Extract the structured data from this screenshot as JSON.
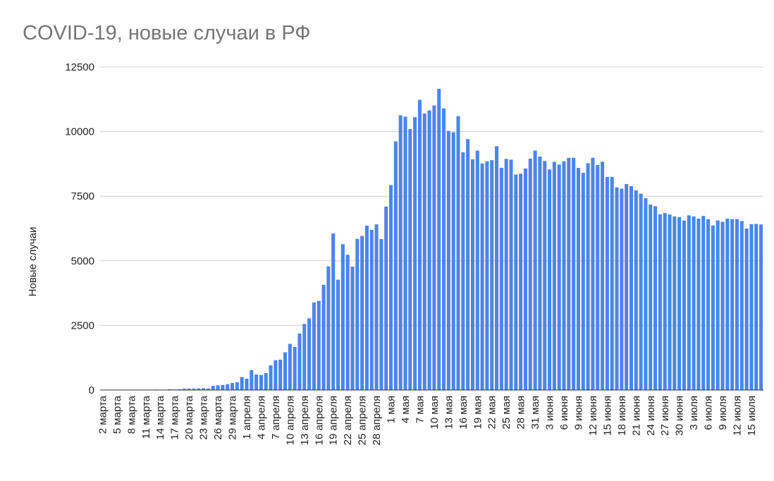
{
  "chart_data": {
    "type": "bar",
    "title": "COVID-19, новые случаи в РФ",
    "y_label": "Новые случаи",
    "color": "#4a86e8",
    "grid": true,
    "ylim": [
      0,
      12500
    ],
    "yticks": [
      0,
      2500,
      5000,
      7500,
      10000,
      12500
    ],
    "categories": [
      "2 марта",
      null,
      null,
      "5 марта",
      null,
      null,
      "8 марта",
      null,
      null,
      "11 марта",
      null,
      null,
      "14 марта",
      null,
      null,
      "17 марта",
      null,
      null,
      "20 марта",
      null,
      null,
      "23 марта",
      null,
      null,
      "26 марта",
      null,
      null,
      "29 марта",
      null,
      null,
      "1 апреля",
      null,
      null,
      "4 апреля",
      null,
      null,
      "7 апреля",
      null,
      null,
      "10 апреля",
      null,
      null,
      "13 апреля",
      null,
      null,
      "16 апреля",
      null,
      null,
      "19 апреля",
      null,
      null,
      "22 апреля",
      null,
      null,
      "25 апреля",
      null,
      null,
      "28 апреля",
      null,
      null,
      "1 мая",
      null,
      null,
      "4 мая",
      null,
      null,
      "7 мая",
      null,
      null,
      "10 мая",
      null,
      null,
      "13 мая",
      null,
      null,
      "16 мая",
      null,
      null,
      "19 мая",
      null,
      null,
      "22 мая",
      null,
      null,
      "25 мая",
      null,
      null,
      "28 мая",
      null,
      null,
      "31 мая",
      null,
      null,
      "3 июня",
      null,
      null,
      "6 июня",
      null,
      null,
      "9 июня",
      null,
      null,
      "12 июня",
      null,
      null,
      "15 июня",
      null,
      null,
      "18 июня",
      null,
      null,
      "21 июня",
      null,
      null,
      "24 июня",
      null,
      null,
      "27 июня",
      null,
      null,
      "30 июня",
      null,
      null,
      "3 июля",
      null,
      null,
      "6 июля",
      null,
      null,
      "9 июля",
      null,
      null,
      "12 июля",
      null,
      null,
      "15 июля",
      null,
      null
    ],
    "values": [
      1,
      0,
      0,
      1,
      6,
      0,
      3,
      0,
      3,
      8,
      6,
      17,
      14,
      4,
      30,
      21,
      33,
      52,
      54,
      53,
      61,
      71,
      57,
      163,
      182,
      196,
      228,
      270,
      302,
      501,
      440,
      771,
      601,
      582,
      658,
      954,
      1154,
      1175,
      1459,
      1786,
      1667,
      2186,
      2558,
      2774,
      3388,
      3448,
      4070,
      4785,
      6060,
      4268,
      5642,
      5236,
      4774,
      5849,
      5966,
      6361,
      6198,
      6411,
      5841,
      7099,
      7933,
      9623,
      10633,
      10581,
      10102,
      10559,
      11231,
      10699,
      10817,
      11012,
      11656,
      10899,
      10028,
      9974,
      10598,
      9200,
      9709,
      8926,
      9263,
      8764,
      8849,
      8894,
      9434,
      8599,
      8946,
      8915,
      8338,
      8371,
      8572,
      8952,
      9268,
      9035,
      8863,
      8536,
      8831,
      8726,
      8855,
      8984,
      8985,
      8595,
      8404,
      8779,
      8987,
      8706,
      8835,
      8246,
      8248,
      7843,
      7790,
      7972,
      7889,
      7728,
      7600,
      7425,
      7176,
      7113,
      6800,
      6852,
      6791,
      6719,
      6693,
      6556,
      6760,
      6718,
      6632,
      6736,
      6611,
      6368,
      6562,
      6509,
      6635,
      6611,
      6615,
      6537,
      6248,
      6422,
      6428,
      6406
    ]
  }
}
